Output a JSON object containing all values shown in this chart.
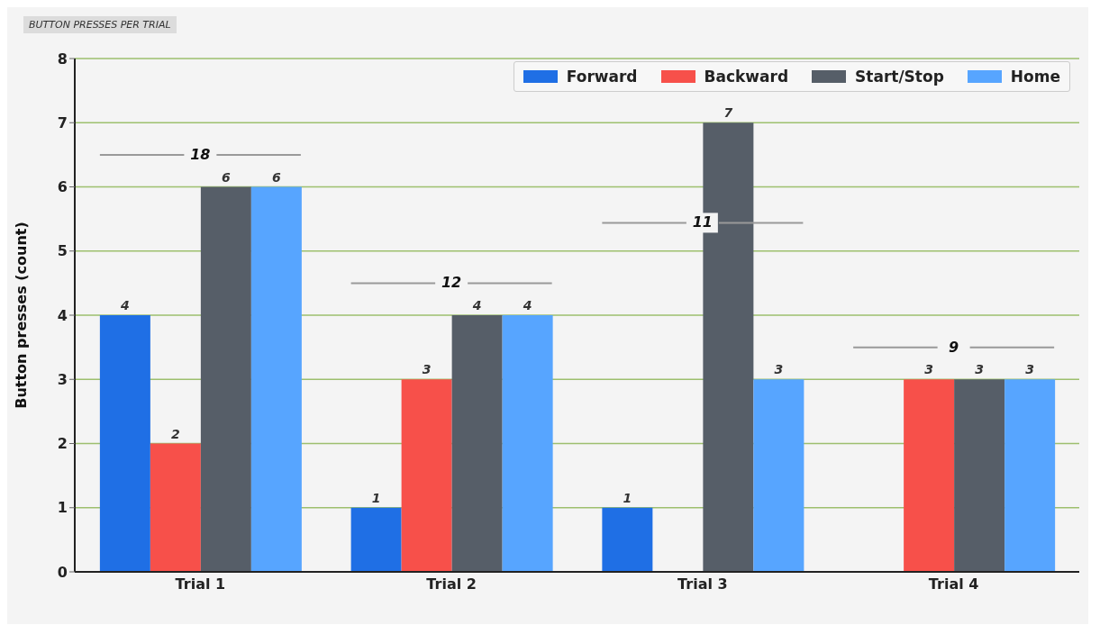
{
  "chart_data": {
    "type": "bar",
    "title": "BUTTON PRESSES PER TRIAL",
    "ylabel": "Button presses (count)",
    "categories": [
      "Trial 1",
      "Trial 2",
      "Trial 3",
      "Trial 4"
    ],
    "series": [
      {
        "name": "Forward",
        "color": "#1f6fe5",
        "values": [
          4,
          1,
          1,
          null
        ]
      },
      {
        "name": "Backward",
        "color": "#f7504a",
        "values": [
          2,
          3,
          null,
          3
        ]
      },
      {
        "name": "Start/Stop",
        "color": "#565e68",
        "values": [
          6,
          4,
          7,
          3
        ]
      },
      {
        "name": "Home",
        "color": "#57a5ff",
        "values": [
          6,
          4,
          3,
          3
        ]
      }
    ],
    "totals": [
      "18",
      "12",
      "11",
      "9"
    ],
    "ylim": [
      0,
      8
    ],
    "yticks": [
      0,
      1,
      2,
      3,
      4,
      5,
      6,
      7,
      8
    ],
    "grid": "y",
    "legend": "top right",
    "data_labels": true
  }
}
